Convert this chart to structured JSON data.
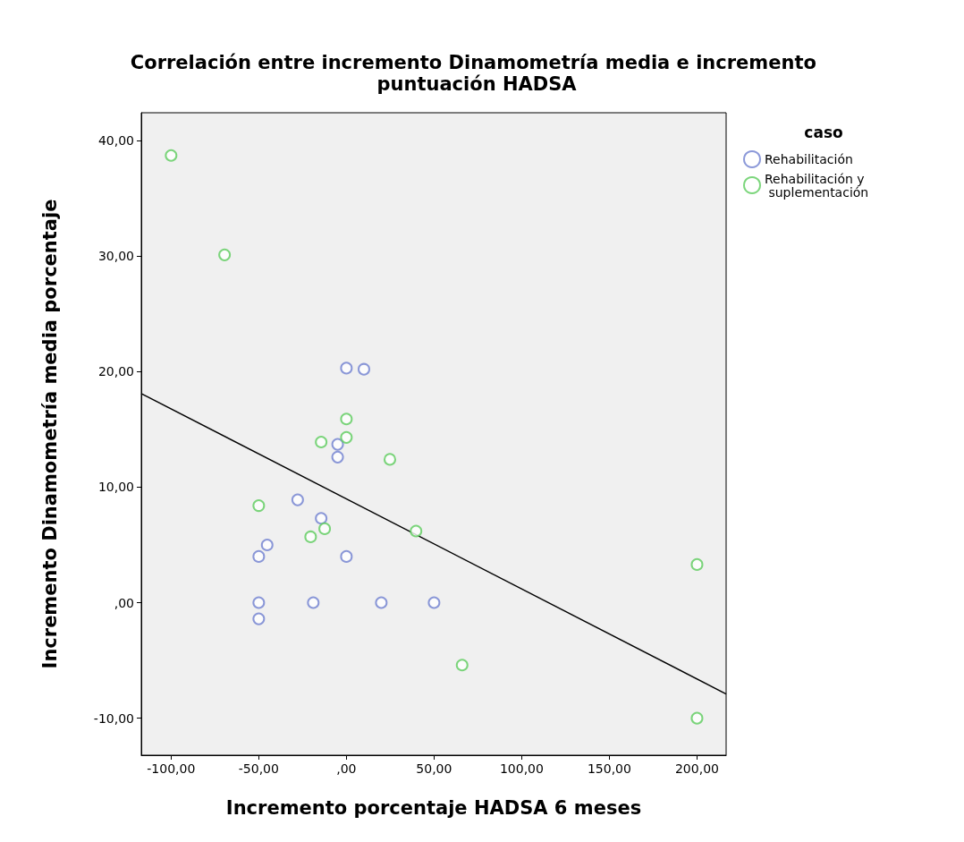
{
  "chart_data": {
    "type": "scatter",
    "title": "Correlación entre incremento Dinamometría media e incremento puntuación HADSA",
    "xlabel": "Incremento porcentaje HADSA 6 meses",
    "ylabel": "Incremento Dinamometría media porcentaje",
    "legend_title": "caso",
    "legend": "top right",
    "grid": false,
    "marker": "circle",
    "xlim": [
      -117,
      216.6
    ],
    "ylim": [
      -13.2,
      42.4
    ],
    "xticks": [
      {
        "value": -100,
        "label": "-100,00"
      },
      {
        "value": -50,
        "label": "-50,00"
      },
      {
        "value": 0,
        "label": ",00"
      },
      {
        "value": 50,
        "label": "50,00"
      },
      {
        "value": 100,
        "label": "100,00"
      },
      {
        "value": 150,
        "label": "150,00"
      },
      {
        "value": 200,
        "label": "200,00"
      }
    ],
    "yticks": [
      {
        "value": -10,
        "label": "-10,00"
      },
      {
        "value": 0,
        "label": ",00"
      },
      {
        "value": 10,
        "label": "10,00"
      },
      {
        "value": 20,
        "label": "20,00"
      },
      {
        "value": 30,
        "label": "30,00"
      },
      {
        "value": 40,
        "label": "40,00"
      }
    ],
    "series": [
      {
        "name": "Rehabilitación",
        "color": "#6f7fcf",
        "x": [
          0,
          10,
          -5,
          -5,
          -27.8,
          -14.4,
          -45.2,
          -50,
          0,
          -50,
          -18.9,
          19.9,
          50,
          -50
        ],
        "values": [
          20.3,
          20.2,
          13.7,
          12.6,
          8.9,
          7.3,
          5.0,
          4.0,
          4.0,
          0,
          0,
          0,
          0,
          -1.4
        ]
      },
      {
        "name": "Rehabilitación y suplementación",
        "color": "#5ccc5c",
        "x": [
          -100,
          -69.5,
          0,
          -14.4,
          0,
          24.8,
          -50,
          -20.4,
          -12.4,
          39.7,
          66,
          200,
          200
        ],
        "values": [
          38.7,
          30.1,
          15.9,
          13.9,
          14.3,
          12.4,
          8.4,
          5.7,
          6.4,
          6.2,
          -5.4,
          3.3,
          -10
        ]
      },
      {
        "type": "line",
        "color": "#000000",
        "line_style": "solid",
        "marker": "none",
        "x": [
          -117,
          216.6
        ],
        "values": [
          18.1,
          -7.9
        ]
      }
    ]
  }
}
